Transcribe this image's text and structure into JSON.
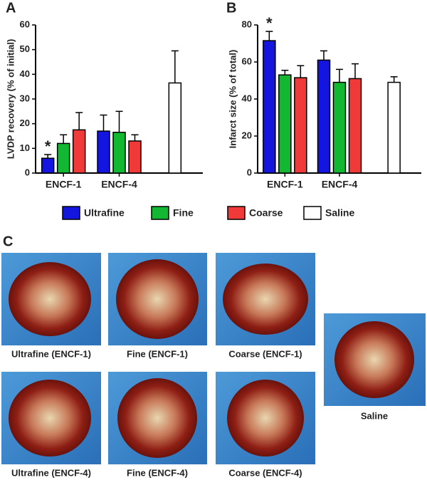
{
  "panel_labels": [
    "A",
    "B",
    "C"
  ],
  "chart_data": [
    {
      "type": "bar",
      "ylabel": "LVDP recovery (%  of initial)",
      "categories": [
        "ENCF-1",
        "ENCF-4",
        null
      ],
      "series": [
        {
          "name": "Ultrafine",
          "color": "#1515e0",
          "values": [
            6,
            17,
            null
          ],
          "errors": [
            1.5,
            6.5,
            null
          ]
        },
        {
          "name": "Fine",
          "color": "#12b832",
          "values": [
            12,
            16.5,
            null
          ],
          "errors": [
            3.5,
            8.5,
            null
          ]
        },
        {
          "name": "Coarse",
          "color": "#f03a3a",
          "values": [
            17.5,
            13,
            null
          ],
          "errors": [
            7,
            2.5,
            null
          ]
        },
        {
          "name": "Saline",
          "color": "#ffffff",
          "values": [
            null,
            null,
            36.5
          ],
          "errors": [
            null,
            null,
            13
          ]
        }
      ],
      "ylim": [
        0,
        60
      ],
      "yticks": [
        0,
        10,
        20,
        30,
        40,
        50,
        60
      ],
      "annotations": [
        {
          "text": "*",
          "series": 0,
          "category": 0
        }
      ]
    },
    {
      "type": "bar",
      "ylabel": "Infarct size (% of total)",
      "categories": [
        "ENCF-1",
        "ENCF-4",
        null
      ],
      "series": [
        {
          "color": "#1515e0",
          "values": [
            71.5,
            61,
            null
          ],
          "errors": [
            5,
            5,
            null
          ]
        },
        {
          "color": "#12b832",
          "values": [
            53,
            49,
            null
          ],
          "errors": [
            2.5,
            7,
            null
          ]
        },
        {
          "color": "#f03a3a",
          "values": [
            51.5,
            51,
            null
          ],
          "errors": [
            6.5,
            8,
            null
          ]
        },
        {
          "color": "#ffffff",
          "values": [
            null,
            null,
            49
          ],
          "errors": [
            null,
            null,
            3
          ]
        }
      ],
      "ylim": [
        0,
        80
      ],
      "yticks": [
        0,
        20,
        40,
        60,
        80
      ],
      "annotations": [
        {
          "text": "*",
          "series": 0,
          "category": 0
        }
      ]
    }
  ],
  "photos": [
    "Ultrafine (ENCF-1)",
    "Fine (ENCF-1)",
    "Coarse (ENCF-1)",
    "Ultrafine (ENCF-4)",
    "Fine (ENCF-4)",
    "Coarse (ENCF-4)",
    "Saline"
  ]
}
